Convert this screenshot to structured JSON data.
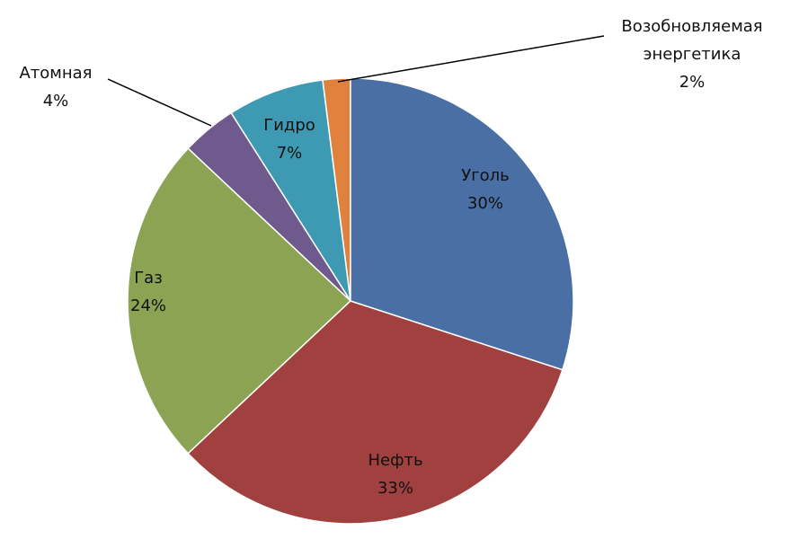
{
  "chart_data": {
    "type": "pie",
    "categories": [
      "Уголь",
      "Нефть",
      "Газ",
      "Атомная",
      "Гидро",
      "Возобновляемая энергетика"
    ],
    "values": [
      30,
      33,
      24,
      4,
      7,
      2
    ],
    "value_labels": [
      "30%",
      "33%",
      "24%",
      "4%",
      "7%",
      "2%"
    ],
    "colors": [
      "#4a6fa5",
      "#a0413f",
      "#8ba353",
      "#6e5a8c",
      "#3e9ab3",
      "#e0823e"
    ]
  }
}
